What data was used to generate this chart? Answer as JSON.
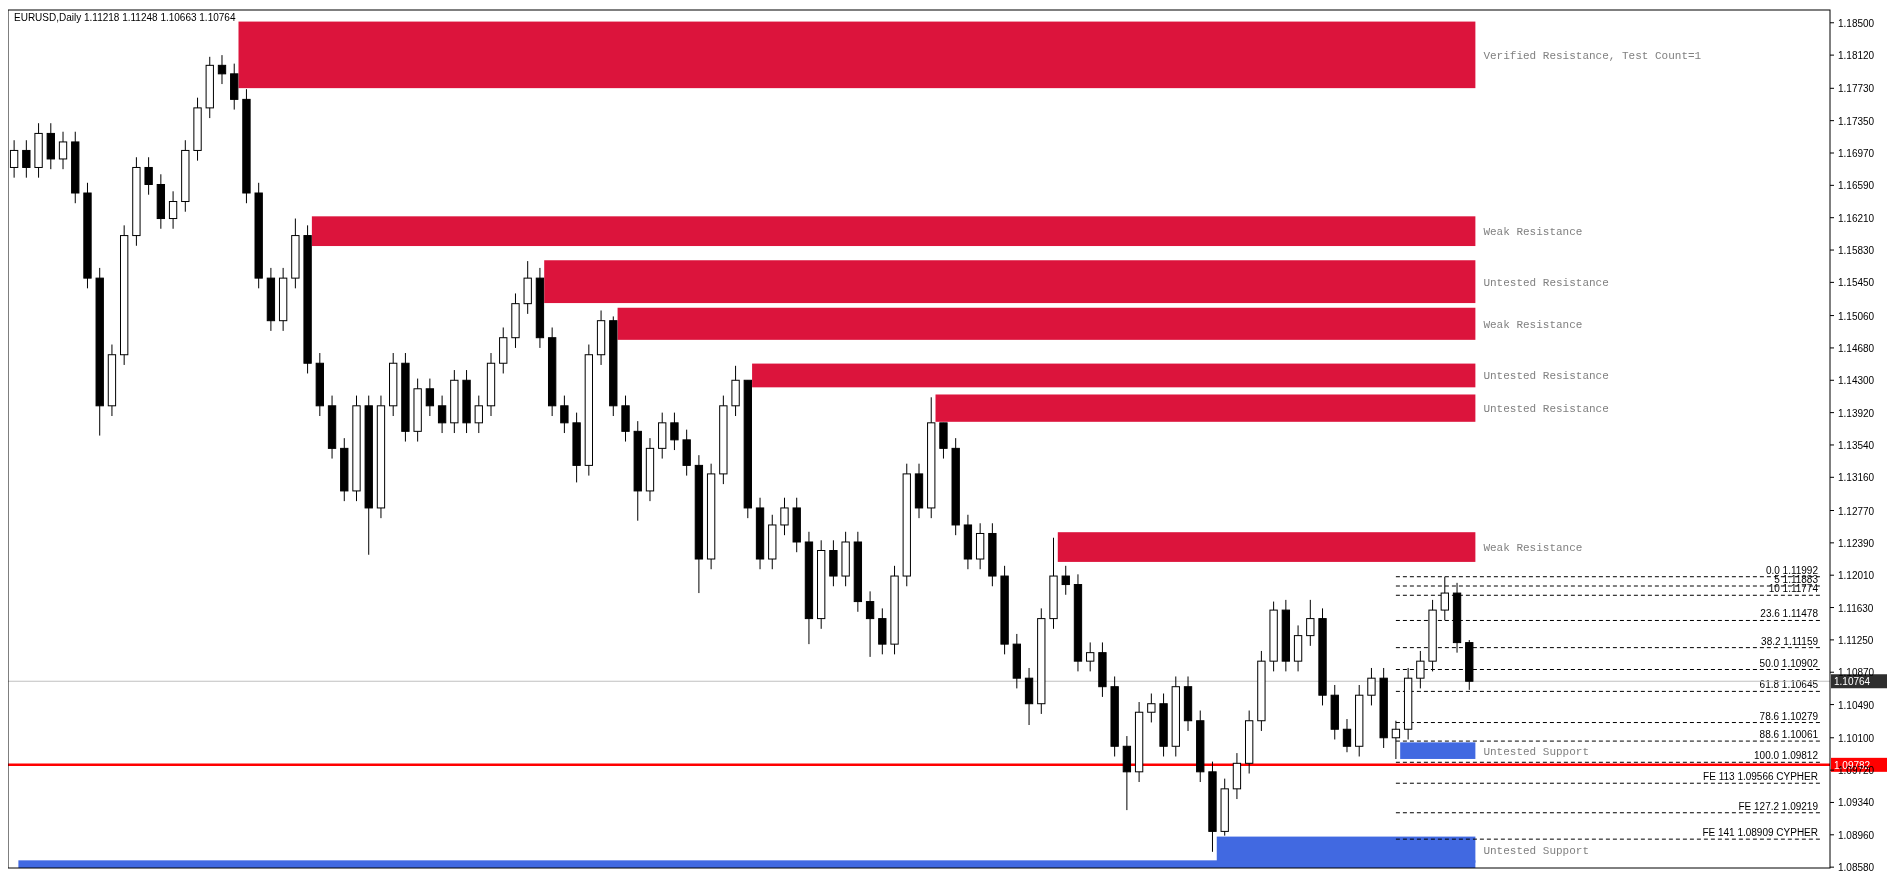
{
  "chart_data": {
    "type": "candlestick",
    "title": "EURUSD,Daily  1.11218 1.11248 1.10663 1.10764",
    "categories": [
      null,
      null,
      null,
      null,
      null,
      null,
      null,
      null,
      null,
      null,
      null,
      null,
      null,
      null,
      null,
      null,
      null,
      null,
      null,
      null,
      null,
      null,
      null,
      null,
      null,
      null,
      null,
      null,
      null,
      null,
      null,
      null,
      null,
      null,
      null,
      null,
      null,
      null,
      null,
      null,
      null,
      null,
      null,
      null,
      null,
      null,
      null,
      null,
      null,
      null,
      null,
      null,
      null,
      null,
      null,
      null,
      null,
      null,
      null,
      null,
      null,
      null,
      null,
      null,
      null,
      null,
      null,
      null,
      null,
      null,
      null,
      null,
      null,
      null,
      null,
      null,
      null,
      null,
      null,
      null,
      null,
      null,
      null,
      null,
      null,
      null,
      null,
      null,
      null,
      null,
      null,
      null,
      null,
      null,
      null,
      null,
      null,
      null,
      null,
      null,
      null,
      null,
      null,
      null,
      null,
      null,
      null,
      null,
      null,
      null,
      null,
      null,
      null,
      null,
      null,
      null,
      null,
      null,
      null,
      null,
      null,
      null,
      null,
      null,
      null,
      null,
      null,
      null,
      null,
      null,
      null,
      null,
      null,
      null,
      null,
      null,
      null,
      null,
      null,
      null,
      null,
      null,
      null,
      null,
      null,
      null,
      null,
      null,
      null
    ],
    "ohlc": [
      [
        1.168,
        1.1712,
        1.1668,
        1.17
      ],
      [
        1.17,
        1.1712,
        1.1668,
        1.168
      ],
      [
        1.168,
        1.1732,
        1.1668,
        1.172
      ],
      [
        1.172,
        1.1732,
        1.1678,
        1.169
      ],
      [
        1.169,
        1.1722,
        1.1678,
        1.171
      ],
      [
        1.171,
        1.1722,
        1.1638,
        1.165
      ],
      [
        1.165,
        1.1662,
        1.1538,
        1.155
      ],
      [
        1.155,
        1.1562,
        1.1365,
        1.14
      ],
      [
        1.14,
        1.1472,
        1.1388,
        1.146
      ],
      [
        1.146,
        1.1612,
        1.1448,
        1.16
      ],
      [
        1.16,
        1.1692,
        1.1588,
        1.168
      ],
      [
        1.168,
        1.1692,
        1.1648,
        1.166
      ],
      [
        1.166,
        1.1672,
        1.1608,
        1.162
      ],
      [
        1.162,
        1.1652,
        1.1608,
        1.164
      ],
      [
        1.164,
        1.1712,
        1.1628,
        1.17
      ],
      [
        1.17,
        1.1762,
        1.1688,
        1.175
      ],
      [
        1.175,
        1.181,
        1.1738,
        1.18
      ],
      [
        1.18,
        1.1812,
        1.1778,
        1.179
      ],
      [
        1.179,
        1.1802,
        1.1748,
        1.176
      ],
      [
        1.176,
        1.1772,
        1.1638,
        1.165
      ],
      [
        1.165,
        1.1662,
        1.1538,
        1.155
      ],
      [
        1.155,
        1.1562,
        1.1488,
        1.15
      ],
      [
        1.15,
        1.1562,
        1.1488,
        1.155
      ],
      [
        1.155,
        1.162,
        1.1538,
        1.16
      ],
      [
        1.16,
        1.1612,
        1.1438,
        1.145
      ],
      [
        1.145,
        1.1462,
        1.1388,
        1.14
      ],
      [
        1.14,
        1.1412,
        1.1338,
        1.135
      ],
      [
        1.135,
        1.1362,
        1.1288,
        1.13
      ],
      [
        1.13,
        1.1412,
        1.1288,
        1.14
      ],
      [
        1.14,
        1.1412,
        1.1225,
        1.128
      ],
      [
        1.128,
        1.1412,
        1.1268,
        1.14
      ],
      [
        1.14,
        1.1462,
        1.1388,
        1.145
      ],
      [
        1.145,
        1.1462,
        1.1358,
        1.137
      ],
      [
        1.137,
        1.1432,
        1.1358,
        1.142
      ],
      [
        1.142,
        1.1432,
        1.1388,
        1.14
      ],
      [
        1.14,
        1.1412,
        1.1368,
        1.138
      ],
      [
        1.138,
        1.1442,
        1.1368,
        1.143
      ],
      [
        1.143,
        1.1442,
        1.1368,
        1.138
      ],
      [
        1.138,
        1.1412,
        1.1368,
        1.14
      ],
      [
        1.14,
        1.1462,
        1.1388,
        1.145
      ],
      [
        1.145,
        1.1492,
        1.1438,
        1.148
      ],
      [
        1.148,
        1.1532,
        1.1468,
        1.152
      ],
      [
        1.152,
        1.157,
        1.1508,
        1.155
      ],
      [
        1.155,
        1.1562,
        1.1468,
        1.148
      ],
      [
        1.148,
        1.1492,
        1.1388,
        1.14
      ],
      [
        1.14,
        1.1412,
        1.1368,
        1.138
      ],
      [
        1.138,
        1.1392,
        1.131,
        1.133
      ],
      [
        1.133,
        1.1472,
        1.1318,
        1.146
      ],
      [
        1.146,
        1.1512,
        1.1448,
        1.15
      ],
      [
        1.15,
        1.1505,
        1.1388,
        1.14
      ],
      [
        1.14,
        1.1412,
        1.1358,
        1.137
      ],
      [
        1.137,
        1.1382,
        1.1265,
        1.13
      ],
      [
        1.13,
        1.1362,
        1.1288,
        1.135
      ],
      [
        1.135,
        1.1392,
        1.1338,
        1.138
      ],
      [
        1.138,
        1.1392,
        1.1348,
        1.136
      ],
      [
        1.136,
        1.1372,
        1.1318,
        1.133
      ],
      [
        1.133,
        1.1342,
        1.118,
        1.122
      ],
      [
        1.122,
        1.1332,
        1.1208,
        1.132
      ],
      [
        1.132,
        1.1412,
        1.1308,
        1.14
      ],
      [
        1.14,
        1.1447,
        1.1388,
        1.143
      ],
      [
        1.143,
        1.143,
        1.1268,
        1.128
      ],
      [
        1.128,
        1.1292,
        1.1208,
        1.122
      ],
      [
        1.122,
        1.1272,
        1.1208,
        1.126
      ],
      [
        1.126,
        1.1292,
        1.1248,
        1.128
      ],
      [
        1.128,
        1.1292,
        1.1228,
        1.124
      ],
      [
        1.124,
        1.1252,
        1.112,
        1.115
      ],
      [
        1.115,
        1.1242,
        1.1138,
        1.123
      ],
      [
        1.123,
        1.1242,
        1.1188,
        1.12
      ],
      [
        1.12,
        1.1252,
        1.1188,
        1.124
      ],
      [
        1.124,
        1.1252,
        1.1158,
        1.117
      ],
      [
        1.117,
        1.1182,
        1.1105,
        1.115
      ],
      [
        1.115,
        1.1162,
        1.1108,
        1.112
      ],
      [
        1.112,
        1.1212,
        1.1108,
        1.12
      ],
      [
        1.12,
        1.1332,
        1.1188,
        1.132
      ],
      [
        1.132,
        1.1332,
        1.1268,
        1.128
      ],
      [
        1.128,
        1.141,
        1.1268,
        1.138
      ],
      [
        1.138,
        1.138,
        1.1338,
        1.135
      ],
      [
        1.135,
        1.1362,
        1.1248,
        1.126
      ],
      [
        1.126,
        1.1272,
        1.1208,
        1.122
      ],
      [
        1.122,
        1.1262,
        1.1208,
        1.125
      ],
      [
        1.125,
        1.1262,
        1.1188,
        1.12
      ],
      [
        1.12,
        1.1212,
        1.1108,
        1.112
      ],
      [
        1.112,
        1.1132,
        1.1068,
        1.108
      ],
      [
        1.108,
        1.1092,
        1.1025,
        1.105
      ],
      [
        1.105,
        1.1162,
        1.1038,
        1.115
      ],
      [
        1.115,
        1.1245,
        1.1138,
        1.12
      ],
      [
        1.12,
        1.1212,
        1.1178,
        1.119
      ],
      [
        1.119,
        1.1202,
        1.1088,
        1.11
      ],
      [
        1.11,
        1.1122,
        1.1088,
        1.111
      ],
      [
        1.111,
        1.1122,
        1.1058,
        1.107
      ],
      [
        1.107,
        1.1082,
        1.0988,
        1.1
      ],
      [
        1.1,
        1.1012,
        1.0925,
        1.097
      ],
      [
        1.097,
        1.1052,
        1.0958,
        1.104
      ],
      [
        1.104,
        1.1062,
        1.1028,
        1.105
      ],
      [
        1.105,
        1.1062,
        1.0988,
        1.1
      ],
      [
        1.1,
        1.1082,
        1.0988,
        1.107
      ],
      [
        1.107,
        1.1082,
        1.1018,
        1.103
      ],
      [
        1.103,
        1.1042,
        1.0958,
        1.097
      ],
      [
        1.097,
        1.0982,
        1.0876,
        1.09
      ],
      [
        1.09,
        1.0962,
        1.0895,
        1.095
      ],
      [
        1.095,
        1.0992,
        1.0938,
        1.098
      ],
      [
        1.098,
        1.1042,
        1.0968,
        1.103
      ],
      [
        1.103,
        1.1112,
        1.1018,
        1.11
      ],
      [
        1.11,
        1.117,
        1.1088,
        1.116
      ],
      [
        1.116,
        1.1172,
        1.1088,
        1.11
      ],
      [
        1.11,
        1.1142,
        1.1088,
        1.113
      ],
      [
        1.113,
        1.1172,
        1.1118,
        1.115
      ],
      [
        1.115,
        1.1162,
        1.1048,
        1.106
      ],
      [
        1.106,
        1.1072,
        1.1008,
        1.102
      ],
      [
        1.102,
        1.1032,
        1.0993,
        1.1
      ],
      [
        1.1,
        1.1072,
        1.0988,
        1.106
      ],
      [
        1.106,
        1.1092,
        1.1048,
        1.108
      ],
      [
        1.108,
        1.1092,
        1.0998,
        1.101
      ],
      [
        1.101,
        1.103,
        1.0985,
        1.102
      ],
      [
        1.102,
        1.1092,
        1.1008,
        1.108
      ],
      [
        1.108,
        1.1112,
        1.1068,
        1.11
      ],
      [
        1.11,
        1.1172,
        1.1088,
        1.116
      ],
      [
        1.116,
        1.11992,
        1.1148,
        1.118
      ],
      [
        1.118,
        1.1192,
        1.111,
        1.11218
      ],
      [
        1.11218,
        1.11248,
        1.10663,
        1.10764
      ],
      null,
      null,
      null,
      null,
      null,
      null,
      null,
      null,
      null,
      null,
      null,
      null,
      null,
      null,
      null,
      null,
      null,
      null,
      null,
      null,
      null,
      null,
      null,
      null,
      null,
      null,
      null,
      null,
      null
    ],
    "ylim": [
      1.0857,
      1.1865
    ],
    "yticks": [
      {
        "value": 1.185,
        "label": "1.18500"
      },
      {
        "value": 1.1812,
        "label": "1.18120"
      },
      {
        "value": 1.1773,
        "label": "1.17730"
      },
      {
        "value": 1.1735,
        "label": "1.17350"
      },
      {
        "value": 1.1697,
        "label": "1.16970"
      },
      {
        "value": 1.1659,
        "label": "1.16590"
      },
      {
        "value": 1.1621,
        "label": "1.16210"
      },
      {
        "value": 1.1583,
        "label": "1.15830"
      },
      {
        "value": 1.1545,
        "label": "1.15450"
      },
      {
        "value": 1.1506,
        "label": "1.15060"
      },
      {
        "value": 1.1468,
        "label": "1.14680"
      },
      {
        "value": 1.143,
        "label": "1.14300"
      },
      {
        "value": 1.1392,
        "label": "1.13920"
      },
      {
        "value": 1.1354,
        "label": "1.13540"
      },
      {
        "value": 1.1316,
        "label": "1.13160"
      },
      {
        "value": 1.1277,
        "label": "1.12770"
      },
      {
        "value": 1.1239,
        "label": "1.12390"
      },
      {
        "value": 1.1201,
        "label": "1.12010"
      },
      {
        "value": 1.1163,
        "label": "1.11630"
      },
      {
        "value": 1.1125,
        "label": "1.11250"
      },
      {
        "value": 1.1087,
        "label": "1.10870"
      },
      {
        "value": 1.1049,
        "label": "1.10490"
      },
      {
        "value": 1.101,
        "label": "1.10100"
      },
      {
        "value": 1.0972,
        "label": "1.09720"
      },
      {
        "value": 1.0934,
        "label": "1.09340"
      },
      {
        "value": 1.0896,
        "label": "1.08960"
      },
      {
        "value": 1.0858,
        "label": "1.08580"
      }
    ],
    "bands": [
      {
        "axis": "y",
        "from": 1.17732,
        "to": 1.18514,
        "label": "Verified Resistance, Test Count=1",
        "color": "#dc143c"
      },
      {
        "axis": "y",
        "from": 1.15877,
        "to": 1.16226,
        "label": "Weak Resistance",
        "color": "#dc143c"
      },
      {
        "axis": "y",
        "from": 1.15207,
        "to": 1.1571,
        "label": "Untested Resistance",
        "color": "#dc143c"
      },
      {
        "axis": "y",
        "from": 1.14775,
        "to": 1.15152,
        "label": "Weak Resistance",
        "color": "#dc143c"
      },
      {
        "axis": "y",
        "from": 1.14217,
        "to": 1.14496,
        "label": "Untested Resistance",
        "color": "#dc143c"
      },
      {
        "axis": "y",
        "from": 1.13812,
        "to": 1.14133,
        "label": "Untested Resistance",
        "color": "#dc143c"
      },
      {
        "axis": "y",
        "from": 1.12166,
        "to": 1.12515,
        "label": "Weak Resistance",
        "color": "#dc143c"
      },
      {
        "axis": "y",
        "from": 1.09851,
        "to": 1.10046,
        "label": "Untested Support",
        "color": "#4169e1"
      },
      {
        "axis": "y",
        "from": 1.08632,
        "to": 1.08939,
        "label": "Untested Support",
        "color": "#4169e1"
      },
      {
        "axis": "y",
        "from": 1.0857,
        "to": 1.0866,
        "color": "#4169e1"
      }
    ],
    "ref_lines": [
      {
        "axis": "y",
        "value": 1.11992,
        "label": "0.0 1.11992",
        "line_style": "dashed",
        "color": "#000000"
      },
      {
        "axis": "y",
        "value": 1.11883,
        "label": "5 1.11883",
        "line_style": "dashed",
        "color": "#000000"
      },
      {
        "axis": "y",
        "value": 1.11774,
        "label": "10 1.11774",
        "line_style": "dashed",
        "color": "#000000"
      },
      {
        "axis": "y",
        "value": 1.11478,
        "label": "23.6 1.11478",
        "line_style": "dashed",
        "color": "#000000"
      },
      {
        "axis": "y",
        "value": 1.11159,
        "label": "38.2 1.11159",
        "line_style": "dashed",
        "color": "#000000"
      },
      {
        "axis": "y",
        "value": 1.10902,
        "label": "50.0 1.10902",
        "line_style": "dashed",
        "color": "#000000"
      },
      {
        "axis": "y",
        "value": 1.10645,
        "label": "61.8 1.10645",
        "line_style": "dashed",
        "color": "#000000"
      },
      {
        "axis": "y",
        "value": 1.10279,
        "label": "78.6 1.10279",
        "line_style": "dashed",
        "color": "#000000"
      },
      {
        "axis": "y",
        "value": 1.10061,
        "label": "88.6 1.10061",
        "line_style": "dashed",
        "color": "#000000"
      },
      {
        "axis": "y",
        "value": 1.09812,
        "label": "100.0 1.09812",
        "line_style": "dashed",
        "color": "#000000"
      },
      {
        "axis": "y",
        "value": 1.09566,
        "label": "FE 113 1.09566 CYPHER",
        "line_style": "dashed",
        "color": "#000000"
      },
      {
        "axis": "y",
        "value": 1.09219,
        "label": "FE 127.2 1.09219",
        "line_style": "dashed",
        "color": "#000000"
      },
      {
        "axis": "y",
        "value": 1.08909,
        "label": "FE 141 1.08909 CYPHER",
        "line_style": "dashed",
        "color": "#000000"
      },
      {
        "axis": "y",
        "value": 1.10764,
        "label": "1.10764",
        "line_style": "solid",
        "color": "#c0c0c0"
      },
      {
        "axis": "y",
        "value": 1.09782,
        "label": "1.09782",
        "line_style": "solid",
        "color": "#ff0000"
      }
    ]
  }
}
